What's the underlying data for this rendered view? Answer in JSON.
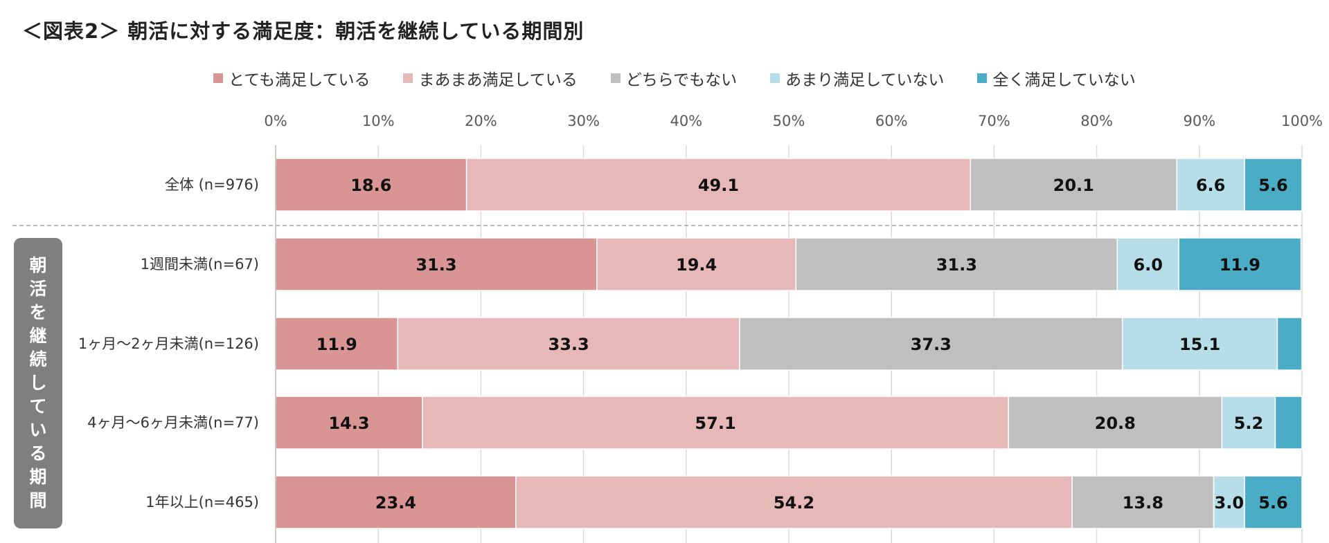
{
  "title": "＜図表2＞ 朝活に対する満足度：朝活を継続している期間別",
  "side_label": "朝活を継続している期間",
  "colors": [
    "#d99594",
    "#e6b8b7",
    "#bfbfbf",
    "#b7dee8",
    "#4bacc6"
  ],
  "chart_data": {
    "type": "bar",
    "orientation": "horizontal",
    "stacked": true,
    "title": "＜図表2＞ 朝活に対する満足度：朝活を継続している期間別",
    "xlim": [
      0,
      100
    ],
    "x_ticks": [
      "0%",
      "10%",
      "20%",
      "30%",
      "40%",
      "50%",
      "60%",
      "70%",
      "80%",
      "90%",
      "100%"
    ],
    "legend_position": "top",
    "categories": [
      "全体 (n=976)",
      "1週間未満(n=67)",
      "1ヶ月～2ヶ月未満(n=126)",
      "4ヶ月～6ヶ月未満(n=77)",
      "1年以上(n=465)"
    ],
    "series": [
      {
        "name": "とても満足している",
        "values": [
          18.6,
          31.3,
          11.9,
          14.3,
          23.4
        ],
        "labels": [
          "18.6",
          "31.3",
          "11.9",
          "14.3",
          "23.4"
        ]
      },
      {
        "name": "まあまあ満足している",
        "values": [
          49.1,
          19.4,
          33.3,
          57.1,
          54.2
        ],
        "labels": [
          "49.1",
          "19.4",
          "33.3",
          "57.1",
          "54.2"
        ]
      },
      {
        "name": "どちらでもない",
        "values": [
          20.1,
          31.3,
          37.3,
          20.8,
          13.8
        ],
        "labels": [
          "20.1",
          "31.3",
          "37.3",
          "20.8",
          "13.8"
        ]
      },
      {
        "name": "あまり満足していない",
        "values": [
          6.6,
          6.0,
          15.1,
          5.2,
          3.0
        ],
        "labels": [
          "6.6",
          "6.0",
          "15.1",
          "5.2",
          "3.0"
        ]
      },
      {
        "name": "全く満足していない",
        "values": [
          5.6,
          11.9,
          2.4,
          2.6,
          5.6
        ],
        "labels": [
          "5.6",
          "11.9",
          "",
          "",
          "5.6"
        ]
      }
    ]
  }
}
